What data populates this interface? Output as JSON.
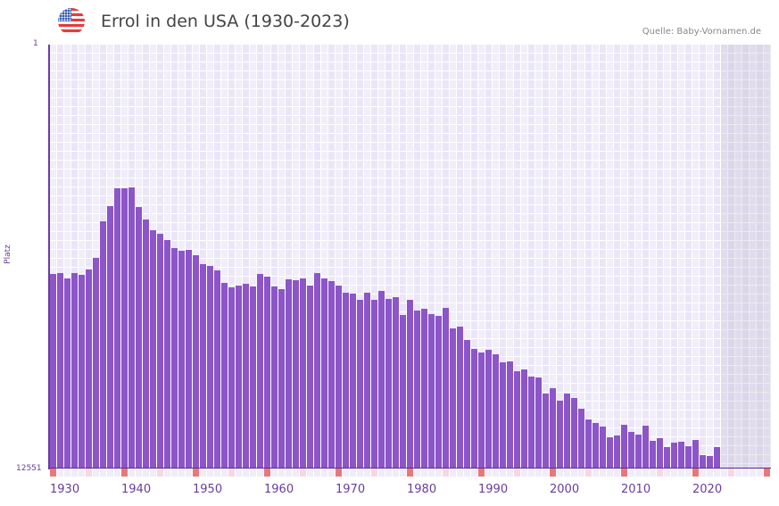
{
  "header": {
    "flag_icon": "us-flag-icon",
    "title": "Errol in den USA (1930-2023)",
    "source": "Quelle: Baby-Vornamen.de"
  },
  "axes": {
    "y_top_label": "1",
    "y_bottom_label": "12551",
    "y_title": "Platz",
    "x_ticks": [
      "1930",
      "1940",
      "1950",
      "1960",
      "1970",
      "1980",
      "1990",
      "2000",
      "2010",
      "2020"
    ]
  },
  "colors": {
    "bar": "#8c55c8",
    "axis": "#6a3d9a",
    "decade_marker": "#e87878",
    "grid_a": "#f1eefa",
    "grid_b": "#ebe6f7"
  },
  "chart_data": {
    "type": "bar",
    "title": "Errol in den USA (1930-2023)",
    "xlabel": "",
    "ylabel": "Platz",
    "ylim": [
      12551,
      1
    ],
    "y_inverted_rank": true,
    "x_range_shown": [
      1930,
      2030
    ],
    "categories": [
      1930,
      1931,
      1932,
      1933,
      1934,
      1935,
      1936,
      1937,
      1938,
      1939,
      1940,
      1941,
      1942,
      1943,
      1944,
      1945,
      1946,
      1947,
      1948,
      1949,
      1950,
      1951,
      1952,
      1953,
      1954,
      1955,
      1956,
      1957,
      1958,
      1959,
      1960,
      1961,
      1962,
      1963,
      1964,
      1965,
      1966,
      1967,
      1968,
      1969,
      1970,
      1971,
      1972,
      1973,
      1974,
      1975,
      1976,
      1977,
      1978,
      1979,
      1980,
      1981,
      1982,
      1983,
      1984,
      1985,
      1986,
      1987,
      1988,
      1989,
      1990,
      1991,
      1992,
      1993,
      1994,
      1995,
      1996,
      1997,
      1998,
      1999,
      2000,
      2001,
      2002,
      2003,
      2004,
      2005,
      2006,
      2007,
      2008,
      2009,
      2010,
      2011,
      2012,
      2013,
      2014,
      2015,
      2016,
      2017,
      2018,
      2019,
      2020,
      2021,
      2022,
      2023
    ],
    "values": [
      6791,
      6765,
      6923,
      6765,
      6818,
      6659,
      6316,
      5232,
      4783,
      4255,
      4255,
      4229,
      4810,
      5180,
      5496,
      5602,
      5787,
      6025,
      6104,
      6078,
      6237,
      6501,
      6554,
      6686,
      7056,
      7188,
      7135,
      7082,
      7161,
      6791,
      6870,
      7161,
      7240,
      6950,
      6976,
      6923,
      7135,
      6765,
      6923,
      7003,
      7135,
      7346,
      7373,
      7558,
      7346,
      7558,
      7293,
      7531,
      7478,
      8007,
      7558,
      7875,
      7822,
      7980,
      8033,
      7795,
      8403,
      8350,
      8747,
      9011,
      9117,
      9037,
      9169,
      9407,
      9381,
      9671,
      9618,
      9830,
      9856,
      10332,
      10173,
      10543,
      10332,
      10464,
      10781,
      11098,
      11204,
      11310,
      11627,
      11574,
      11257,
      11468,
      11548,
      11283,
      11732,
      11653,
      11917,
      11785,
      11759,
      11891,
      11706,
      12155,
      12181,
      11917
    ],
    "grid": true,
    "legend": null,
    "shaded_future_from": 2024
  }
}
